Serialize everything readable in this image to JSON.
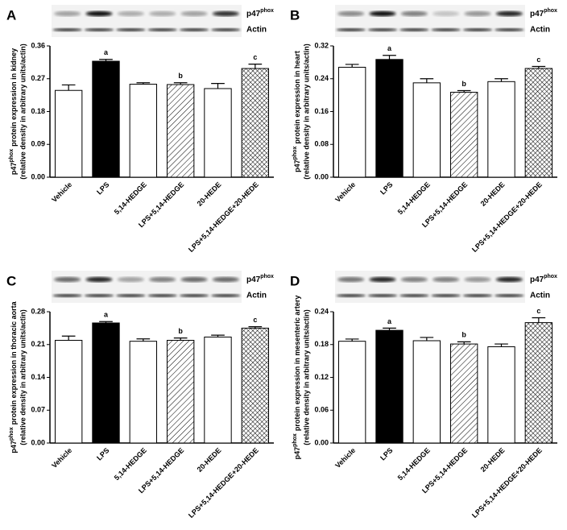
{
  "chart_data": [
    {
      "type": "bar",
      "panel": "A",
      "band_label": {
        "base": "p47",
        "sup": "phox"
      },
      "actin_label": "Actin",
      "ylabel": {
        "base": "p47",
        "sup": "phox",
        "rest": "protein expression in kidney",
        "line2": "(relative density in arbitrary units/actin)"
      },
      "categories": [
        "Vehicle",
        "LPS",
        "5,14-HEDGE",
        "LPS+5,14-HEDGE",
        "20-HEDE",
        "LPS+5,14-HEDGE+20-HEDE"
      ],
      "values": [
        0.238,
        0.318,
        0.255,
        0.254,
        0.243,
        0.298
      ],
      "errors": [
        0.015,
        0.005,
        0.004,
        0.005,
        0.014,
        0.012
      ],
      "fills": [
        "white",
        "black",
        "white",
        "hatch",
        "white",
        "crosshatch"
      ],
      "annotations": [
        {
          "index": 1,
          "text": "a"
        },
        {
          "index": 3,
          "text": "b"
        },
        {
          "index": 5,
          "text": "c"
        }
      ],
      "ylim": [
        0,
        0.36
      ],
      "yticks": [
        {
          "value": 0,
          "label": "0.00"
        },
        0.09,
        0.18,
        0.27,
        0.36
      ]
    },
    {
      "type": "bar",
      "panel": "B",
      "band_label": {
        "base": "p47",
        "sup": "phox"
      },
      "actin_label": "Actin",
      "ylabel": {
        "base": "p47",
        "sup": "phox",
        "rest": "protein expression in heart",
        "line2": "(relative density in arbitrary units/actin)"
      },
      "categories": [
        "Vehicle",
        "LPS",
        "5,14-HEDGE",
        "LPS+5,14-HEDGE",
        "20-HEDE",
        "LPS+5,14-HEDGE+20-HEDE"
      ],
      "values": [
        0.268,
        0.287,
        0.23,
        0.207,
        0.233,
        0.265
      ],
      "errors": [
        0.007,
        0.01,
        0.01,
        0.004,
        0.007,
        0.005
      ],
      "fills": [
        "white",
        "black",
        "white",
        "hatch",
        "white",
        "crosshatch"
      ],
      "annotations": [
        {
          "index": 1,
          "text": "a"
        },
        {
          "index": 3,
          "text": "b"
        },
        {
          "index": 5,
          "text": "c"
        }
      ],
      "ylim": [
        0,
        0.32
      ],
      "yticks": [
        {
          "value": 0,
          "label": "0.00"
        },
        0.08,
        0.16,
        0.24,
        0.32
      ]
    },
    {
      "type": "bar",
      "panel": "C",
      "band_label": {
        "base": "p47",
        "sup": "phox"
      },
      "actin_label": "Actin",
      "ylabel": {
        "base": "p47",
        "sup": "phox",
        "rest": "protein expression in thoracic aorta",
        "line2": "(relative density in arbitrary units/actin)"
      },
      "categories": [
        "Vehicle",
        "LPS",
        "5,14-HEDGE",
        "LPS+5,14-HEDGE",
        "20-HEDE",
        "LPS+5,14-HEDGE+20-HEDE"
      ],
      "values": [
        0.219,
        0.256,
        0.217,
        0.219,
        0.226,
        0.245
      ],
      "errors": [
        0.009,
        0.003,
        0.005,
        0.005,
        0.004,
        0.003
      ],
      "fills": [
        "white",
        "black",
        "white",
        "hatch",
        "white",
        "crosshatch"
      ],
      "annotations": [
        {
          "index": 1,
          "text": "a"
        },
        {
          "index": 3,
          "text": "b"
        },
        {
          "index": 5,
          "text": "c"
        }
      ],
      "ylim": [
        0,
        0.28
      ],
      "yticks": [
        {
          "value": 0,
          "label": "0.00"
        },
        0.07,
        0.14,
        0.21,
        0.28
      ]
    },
    {
      "type": "bar",
      "panel": "D",
      "band_label": {
        "base": "p47",
        "sup": "phox"
      },
      "actin_label": "Actin",
      "ylabel": {
        "base": "p47",
        "sup": "phox",
        "rest": "protein expression in mesenteric artery",
        "line2": "(relative density in arbitrary units/actin)"
      },
      "categories": [
        "Vehicle",
        "LPS",
        "5,14-HEDGE",
        "LPS+5,14-HEDGE",
        "20-HEDE",
        "LPS+5,14-HEDGE+20-HEDE"
      ],
      "values": [
        0.186,
        0.206,
        0.187,
        0.181,
        0.176,
        0.22
      ],
      "errors": [
        0.004,
        0.004,
        0.006,
        0.004,
        0.005,
        0.009
      ],
      "fills": [
        "white",
        "black",
        "white",
        "hatch",
        "white",
        "crosshatch"
      ],
      "annotations": [
        {
          "index": 1,
          "text": "a"
        },
        {
          "index": 3,
          "text": "b"
        },
        {
          "index": 5,
          "text": "c"
        }
      ],
      "ylim": [
        0,
        0.24
      ],
      "yticks": [
        {
          "value": 0,
          "label": "0.00"
        },
        0.06,
        0.12,
        0.18,
        0.24
      ]
    }
  ]
}
